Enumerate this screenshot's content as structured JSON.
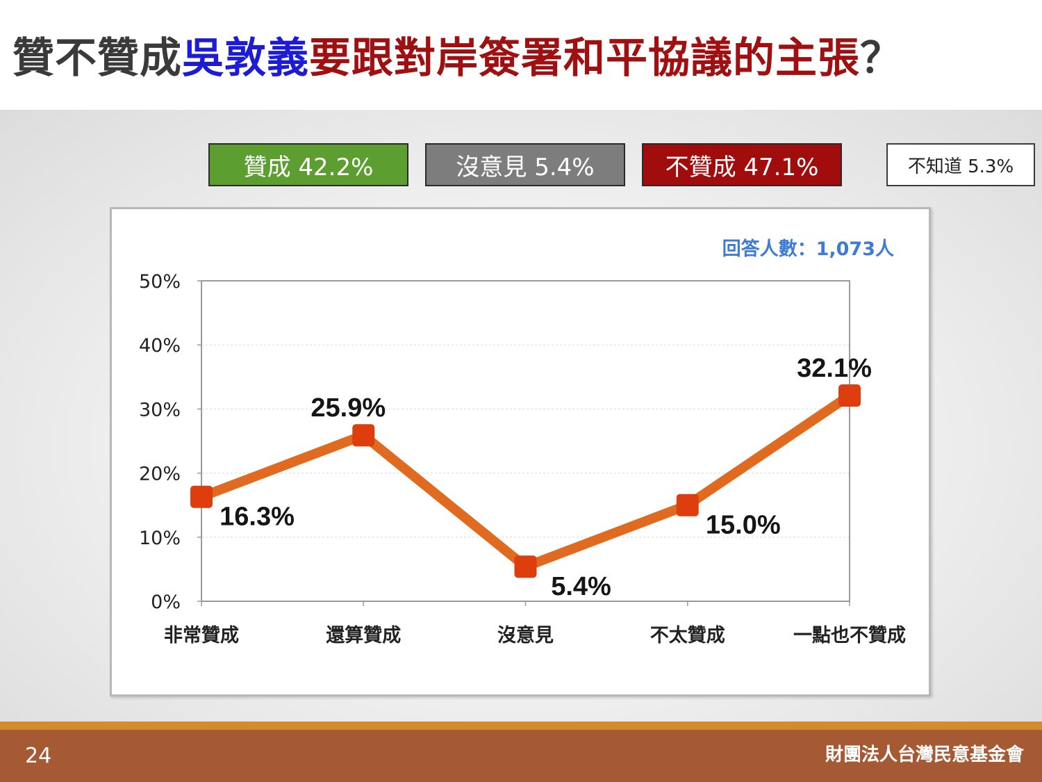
{
  "title": {
    "part1": "贊不贊成",
    "part2": "吳敦義",
    "part3": "要跟對岸簽署和平協議的主張",
    "part4": "？"
  },
  "summary": {
    "agree": "贊成 42.2%",
    "neutral": "沒意見 5.4%",
    "disagree": "不贊成 47.1%",
    "unknown": "不知道 5.3%"
  },
  "colors": {
    "title_dark": "#3a3a3a",
    "title_blue": "#1b1bd8",
    "title_red": "#a01010",
    "agree": "#5c9e30",
    "neutral": "#7d7d7d",
    "disagree": "#a10d0d",
    "line": "#e06a1f",
    "marker": "#de3d0e",
    "sample_text": "#3d7bd6",
    "footer_band": "#a65a33",
    "footer_stripe": "#d08c2e"
  },
  "chart_data": {
    "type": "line",
    "title": "",
    "xlabel": "",
    "ylabel": "",
    "categories": [
      "非常贊成",
      "還算贊成",
      "沒意見",
      "不太贊成",
      "一點也不贊成"
    ],
    "values": [
      16.3,
      25.9,
      5.4,
      15.0,
      32.1
    ],
    "data_labels": [
      "16.3%",
      "25.9%",
      "5.4%",
      "15.0%",
      "32.1%"
    ],
    "ylim": [
      0,
      50
    ],
    "yticks": [
      0,
      10,
      20,
      30,
      40,
      50
    ],
    "ytick_labels": [
      "0%",
      "10%",
      "20%",
      "30%",
      "40%",
      "50%"
    ],
    "label_positions": [
      "below",
      "above",
      "below",
      "below",
      "above"
    ],
    "grid": true,
    "legend": "none",
    "annotation": "回答人數：1,073人"
  },
  "footer": {
    "page_number": "24",
    "organization": "財團法人台灣民意基金會"
  }
}
